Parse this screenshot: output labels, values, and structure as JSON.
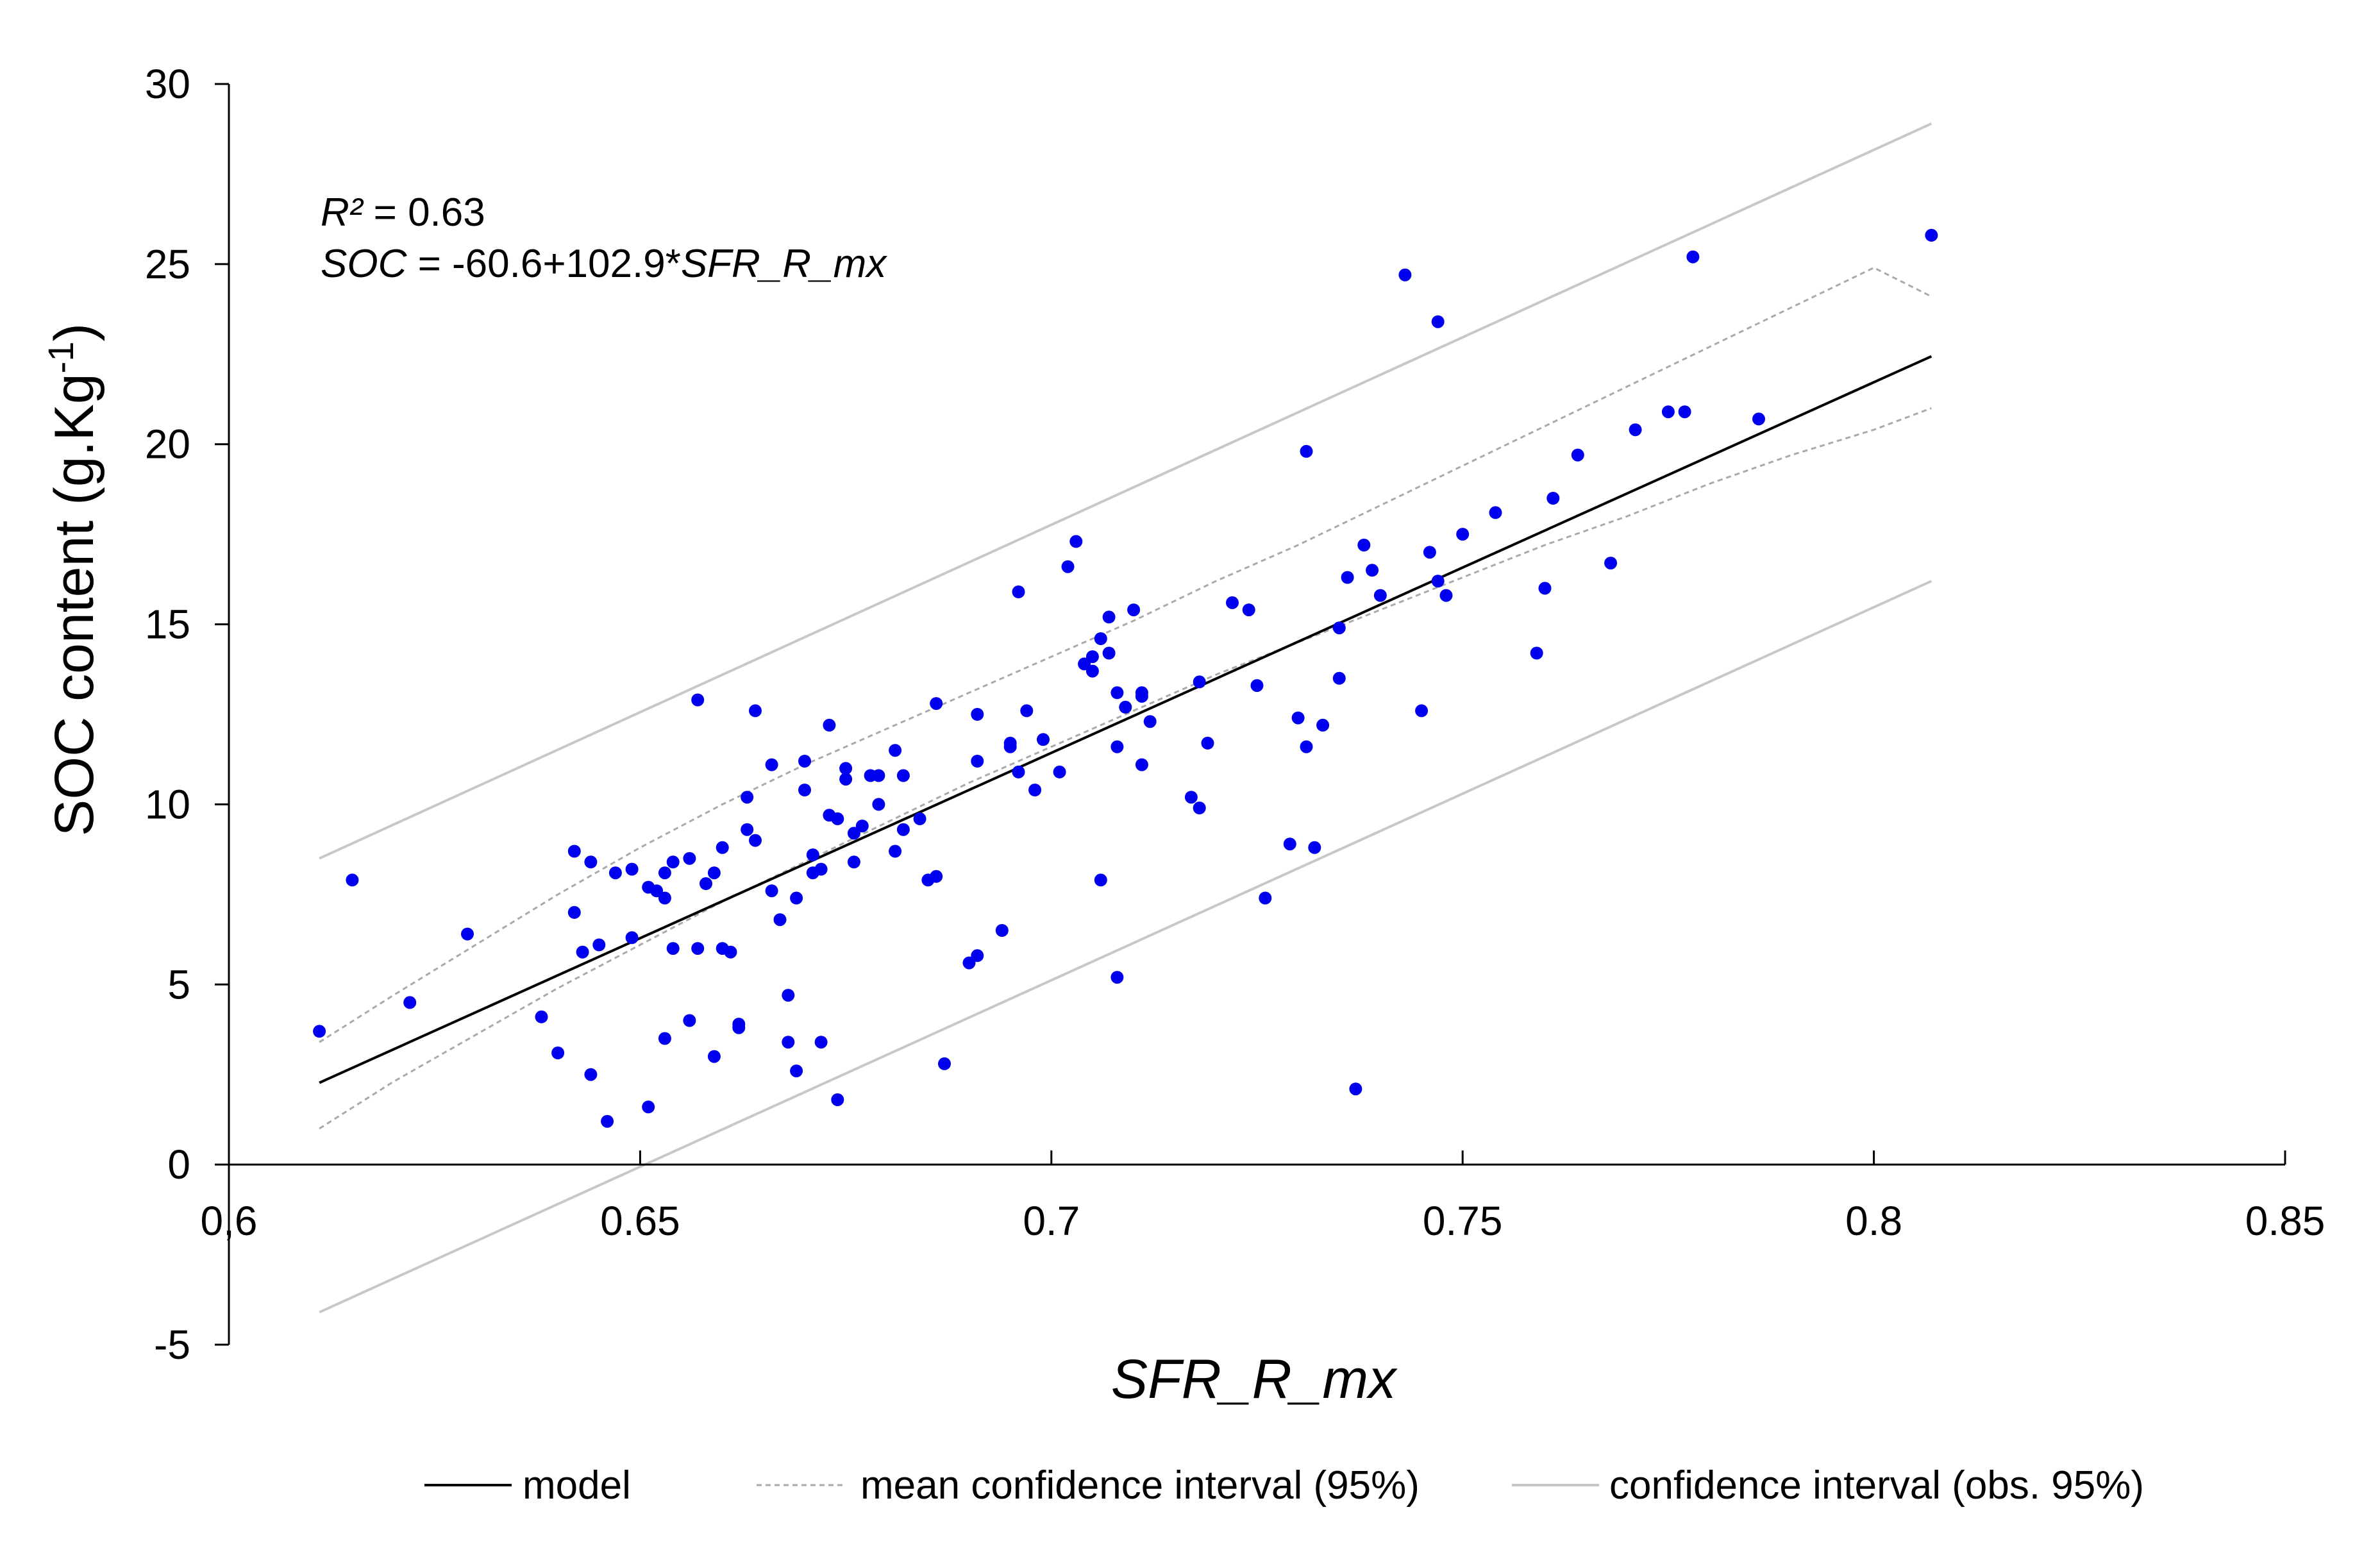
{
  "chart_data": {
    "type": "scatter",
    "xlabel": "SFR_R_mx",
    "ylabel": "SOC content (g.Kg-1)",
    "ylabel_parts": {
      "main": "SOC content (g.Kg",
      "sup": "-1",
      "close": ")"
    },
    "xlim": [
      0.6,
      0.85
    ],
    "ylim": [
      -5,
      30
    ],
    "x_ticks": [
      0.6,
      0.65,
      0.7,
      0.75,
      0.8,
      0.85
    ],
    "x_tick_labels": [
      "0,6",
      "0.65",
      "0.7",
      "0.75",
      "0.8",
      "0.85"
    ],
    "y_ticks": [
      -5,
      0,
      5,
      10,
      15,
      20,
      25,
      30
    ],
    "y_tick_labels": [
      "-5",
      "0",
      "5",
      "10",
      "15",
      "20",
      "25",
      "30"
    ],
    "annotation": {
      "r2_label": "R²",
      "r2_value": " = 0.63",
      "eq_lhs": "SOC",
      "eq_mid": " = -60.6+102.9*",
      "eq_var": "SFR_R_mx"
    },
    "model": {
      "intercept": -60.6,
      "slope": 102.9,
      "x_range": [
        0.611,
        0.807
      ]
    },
    "legend": [
      {
        "key": "model",
        "label": "model"
      },
      {
        "key": "mean_ci",
        "label": "mean confidence interval (95%)"
      },
      {
        "key": "obs_ci",
        "label": "confidence interval (obs. 95%)"
      }
    ],
    "colors": {
      "points": "#0000ee",
      "model": "#000000",
      "mean_ci": "#aaaaaa",
      "obs_ci": "#c8c8c8",
      "axis": "#000000"
    },
    "series": [
      {
        "name": "observations",
        "points": [
          [
            0.611,
            3.7
          ],
          [
            0.615,
            7.9
          ],
          [
            0.622,
            4.5
          ],
          [
            0.629,
            6.4
          ],
          [
            0.638,
            4.1
          ],
          [
            0.64,
            3.1
          ],
          [
            0.642,
            7.0
          ],
          [
            0.642,
            8.7
          ],
          [
            0.643,
            5.9
          ],
          [
            0.644,
            8.4
          ],
          [
            0.644,
            2.5
          ],
          [
            0.645,
            6.1
          ],
          [
            0.646,
            1.2
          ],
          [
            0.647,
            8.1
          ],
          [
            0.649,
            8.2
          ],
          [
            0.649,
            6.3
          ],
          [
            0.651,
            1.6
          ],
          [
            0.651,
            7.7
          ],
          [
            0.652,
            7.6
          ],
          [
            0.653,
            8.1
          ],
          [
            0.653,
            7.4
          ],
          [
            0.653,
            3.5
          ],
          [
            0.654,
            8.4
          ],
          [
            0.654,
            6.0
          ],
          [
            0.656,
            8.5
          ],
          [
            0.656,
            4.0
          ],
          [
            0.657,
            6.0
          ],
          [
            0.657,
            12.9
          ],
          [
            0.658,
            7.8
          ],
          [
            0.659,
            8.1
          ],
          [
            0.659,
            3.0
          ],
          [
            0.66,
            8.8
          ],
          [
            0.66,
            6.0
          ],
          [
            0.661,
            5.9
          ],
          [
            0.662,
            3.8
          ],
          [
            0.662,
            3.9
          ],
          [
            0.663,
            9.3
          ],
          [
            0.663,
            10.2
          ],
          [
            0.664,
            9.0
          ],
          [
            0.664,
            12.6
          ],
          [
            0.666,
            11.1
          ],
          [
            0.666,
            7.6
          ],
          [
            0.667,
            6.8
          ],
          [
            0.668,
            4.7
          ],
          [
            0.668,
            3.4
          ],
          [
            0.669,
            2.6
          ],
          [
            0.669,
            7.4
          ],
          [
            0.67,
            11.2
          ],
          [
            0.67,
            10.4
          ],
          [
            0.671,
            8.6
          ],
          [
            0.671,
            8.1
          ],
          [
            0.672,
            8.2
          ],
          [
            0.672,
            3.4
          ],
          [
            0.673,
            12.2
          ],
          [
            0.673,
            9.7
          ],
          [
            0.674,
            1.8
          ],
          [
            0.674,
            9.6
          ],
          [
            0.675,
            10.7
          ],
          [
            0.675,
            11.0
          ],
          [
            0.676,
            9.2
          ],
          [
            0.676,
            8.4
          ],
          [
            0.677,
            9.4
          ],
          [
            0.678,
            10.8
          ],
          [
            0.679,
            10.8
          ],
          [
            0.679,
            10.0
          ],
          [
            0.681,
            11.5
          ],
          [
            0.681,
            8.7
          ],
          [
            0.682,
            9.3
          ],
          [
            0.682,
            10.8
          ],
          [
            0.684,
            9.6
          ],
          [
            0.685,
            7.9
          ],
          [
            0.686,
            8.0
          ],
          [
            0.686,
            12.8
          ],
          [
            0.687,
            2.8
          ],
          [
            0.69,
            5.6
          ],
          [
            0.691,
            11.2
          ],
          [
            0.691,
            12.5
          ],
          [
            0.691,
            5.8
          ],
          [
            0.694,
            6.5
          ],
          [
            0.695,
            11.7
          ],
          [
            0.695,
            11.6
          ],
          [
            0.696,
            15.9
          ],
          [
            0.696,
            10.9
          ],
          [
            0.697,
            12.6
          ],
          [
            0.698,
            10.4
          ],
          [
            0.699,
            11.8
          ],
          [
            0.701,
            10.9
          ],
          [
            0.702,
            16.6
          ],
          [
            0.703,
            17.3
          ],
          [
            0.704,
            13.9
          ],
          [
            0.705,
            14.1
          ],
          [
            0.705,
            13.7
          ],
          [
            0.706,
            7.9
          ],
          [
            0.706,
            14.6
          ],
          [
            0.707,
            15.2
          ],
          [
            0.707,
            14.2
          ],
          [
            0.708,
            13.1
          ],
          [
            0.708,
            11.6
          ],
          [
            0.708,
            5.2
          ],
          [
            0.709,
            12.7
          ],
          [
            0.71,
            15.4
          ],
          [
            0.711,
            13.1
          ],
          [
            0.711,
            13.0
          ],
          [
            0.711,
            11.1
          ],
          [
            0.712,
            12.3
          ],
          [
            0.717,
            10.2
          ],
          [
            0.718,
            9.9
          ],
          [
            0.718,
            13.4
          ],
          [
            0.719,
            11.7
          ],
          [
            0.722,
            15.6
          ],
          [
            0.724,
            15.4
          ],
          [
            0.725,
            13.3
          ],
          [
            0.726,
            7.4
          ],
          [
            0.729,
            8.9
          ],
          [
            0.73,
            12.4
          ],
          [
            0.731,
            19.8
          ],
          [
            0.731,
            11.6
          ],
          [
            0.732,
            8.8
          ],
          [
            0.733,
            12.2
          ],
          [
            0.735,
            13.5
          ],
          [
            0.735,
            14.9
          ],
          [
            0.736,
            16.3
          ],
          [
            0.737,
            2.1
          ],
          [
            0.738,
            17.2
          ],
          [
            0.739,
            16.5
          ],
          [
            0.74,
            15.8
          ],
          [
            0.743,
            24.7
          ],
          [
            0.745,
            12.6
          ],
          [
            0.746,
            17.0
          ],
          [
            0.747,
            16.2
          ],
          [
            0.747,
            23.4
          ],
          [
            0.748,
            15.8
          ],
          [
            0.75,
            17.5
          ],
          [
            0.754,
            18.1
          ],
          [
            0.759,
            14.2
          ],
          [
            0.76,
            16.0
          ],
          [
            0.761,
            18.5
          ],
          [
            0.764,
            19.7
          ],
          [
            0.768,
            16.7
          ],
          [
            0.771,
            20.4
          ],
          [
            0.775,
            20.9
          ],
          [
            0.777,
            20.9
          ],
          [
            0.778,
            25.2
          ],
          [
            0.786,
            20.7
          ],
          [
            0.807,
            25.8
          ]
        ]
      }
    ],
    "mean_ci_upper": [
      [
        0.611,
        3.4
      ],
      [
        0.62,
        4.7
      ],
      [
        0.63,
        6.1
      ],
      [
        0.64,
        7.5
      ],
      [
        0.65,
        8.8
      ],
      [
        0.66,
        10.0
      ],
      [
        0.67,
        11.1
      ],
      [
        0.68,
        12.1
      ],
      [
        0.69,
        13.1
      ],
      [
        0.7,
        14.1
      ],
      [
        0.71,
        15.1
      ],
      [
        0.72,
        16.2
      ],
      [
        0.73,
        17.2
      ],
      [
        0.74,
        18.3
      ],
      [
        0.75,
        19.4
      ],
      [
        0.76,
        20.5
      ],
      [
        0.77,
        21.6
      ],
      [
        0.78,
        22.7
      ],
      [
        0.79,
        23.8
      ],
      [
        0.8,
        24.9
      ],
      [
        0.807,
        24.1
      ]
    ],
    "mean_ci_lower": [
      [
        0.611,
        1.0
      ],
      [
        0.62,
        2.3
      ],
      [
        0.63,
        3.6
      ],
      [
        0.64,
        4.9
      ],
      [
        0.65,
        6.1
      ],
      [
        0.66,
        7.3
      ],
      [
        0.67,
        8.4
      ],
      [
        0.68,
        9.5
      ],
      [
        0.69,
        10.6
      ],
      [
        0.7,
        11.6
      ],
      [
        0.71,
        12.6
      ],
      [
        0.72,
        13.6
      ],
      [
        0.73,
        14.5
      ],
      [
        0.74,
        15.4
      ],
      [
        0.75,
        16.3
      ],
      [
        0.76,
        17.2
      ],
      [
        0.77,
        18.0
      ],
      [
        0.78,
        18.9
      ],
      [
        0.79,
        19.7
      ],
      [
        0.8,
        20.4
      ],
      [
        0.807,
        21.0
      ]
    ],
    "obs_ci_upper": [
      [
        0.611,
        8.5
      ],
      [
        0.807,
        28.9
      ]
    ],
    "obs_ci_lower": [
      [
        0.611,
        -4.1
      ],
      [
        0.807,
        16.2
      ]
    ]
  }
}
